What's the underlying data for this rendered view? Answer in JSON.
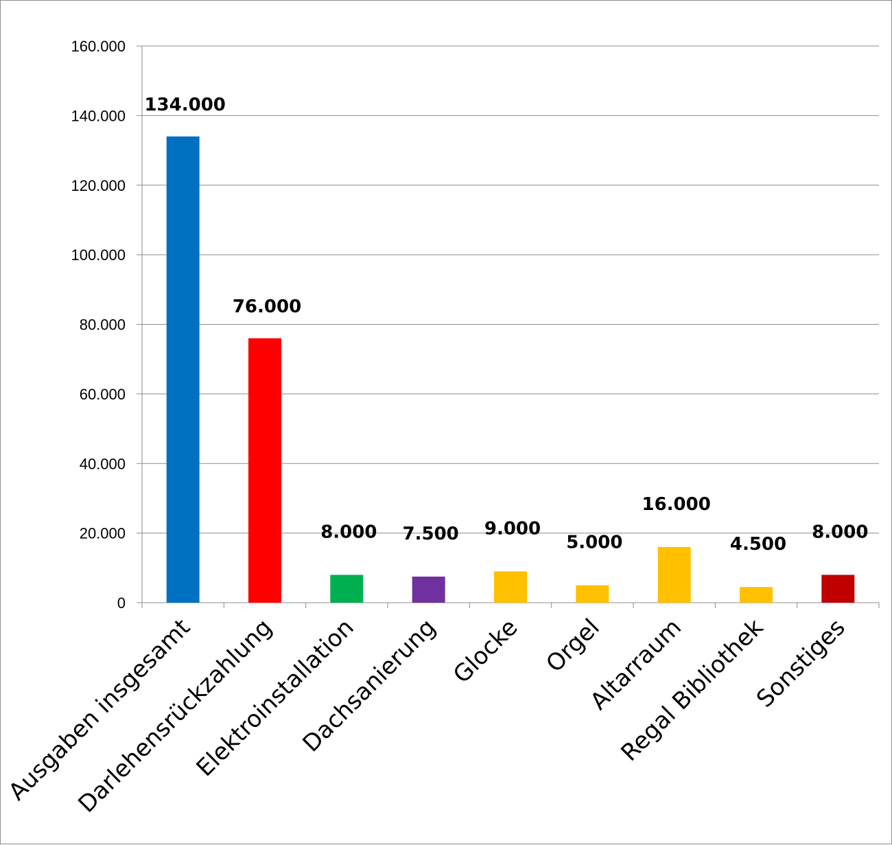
{
  "chart_data": {
    "type": "bar",
    "categories": [
      "Ausgaben insgesamt",
      "Darlehensrückzahlung",
      "Elektroinstallation",
      "Dachsanierung",
      "Glocke",
      "Orgel",
      "Altarraum",
      "Regal Bibliothek",
      "Sonstiges"
    ],
    "values": [
      134000,
      76000,
      8000,
      7500,
      9000,
      5000,
      16000,
      4500,
      8000
    ],
    "data_labels": [
      "134.000",
      "76.000",
      "8.000",
      "7.500",
      "9.000",
      "5.000",
      "16.000",
      "4.500",
      "8.000"
    ],
    "colors": [
      "#0070c0",
      "#ff0000",
      "#00b050",
      "#7030a0",
      "#ffc000",
      "#ffc000",
      "#ffc000",
      "#ffc000",
      "#c00000"
    ],
    "y_ticks": [
      0,
      20000,
      40000,
      60000,
      80000,
      100000,
      120000,
      140000,
      160000
    ],
    "y_tick_labels": [
      "0",
      "20.000",
      "40.000",
      "60.000",
      "80.000",
      "100.000",
      "120.000",
      "140.000",
      "160.000"
    ],
    "ylim": [
      0,
      160000
    ],
    "grid": true,
    "legend": "none"
  }
}
